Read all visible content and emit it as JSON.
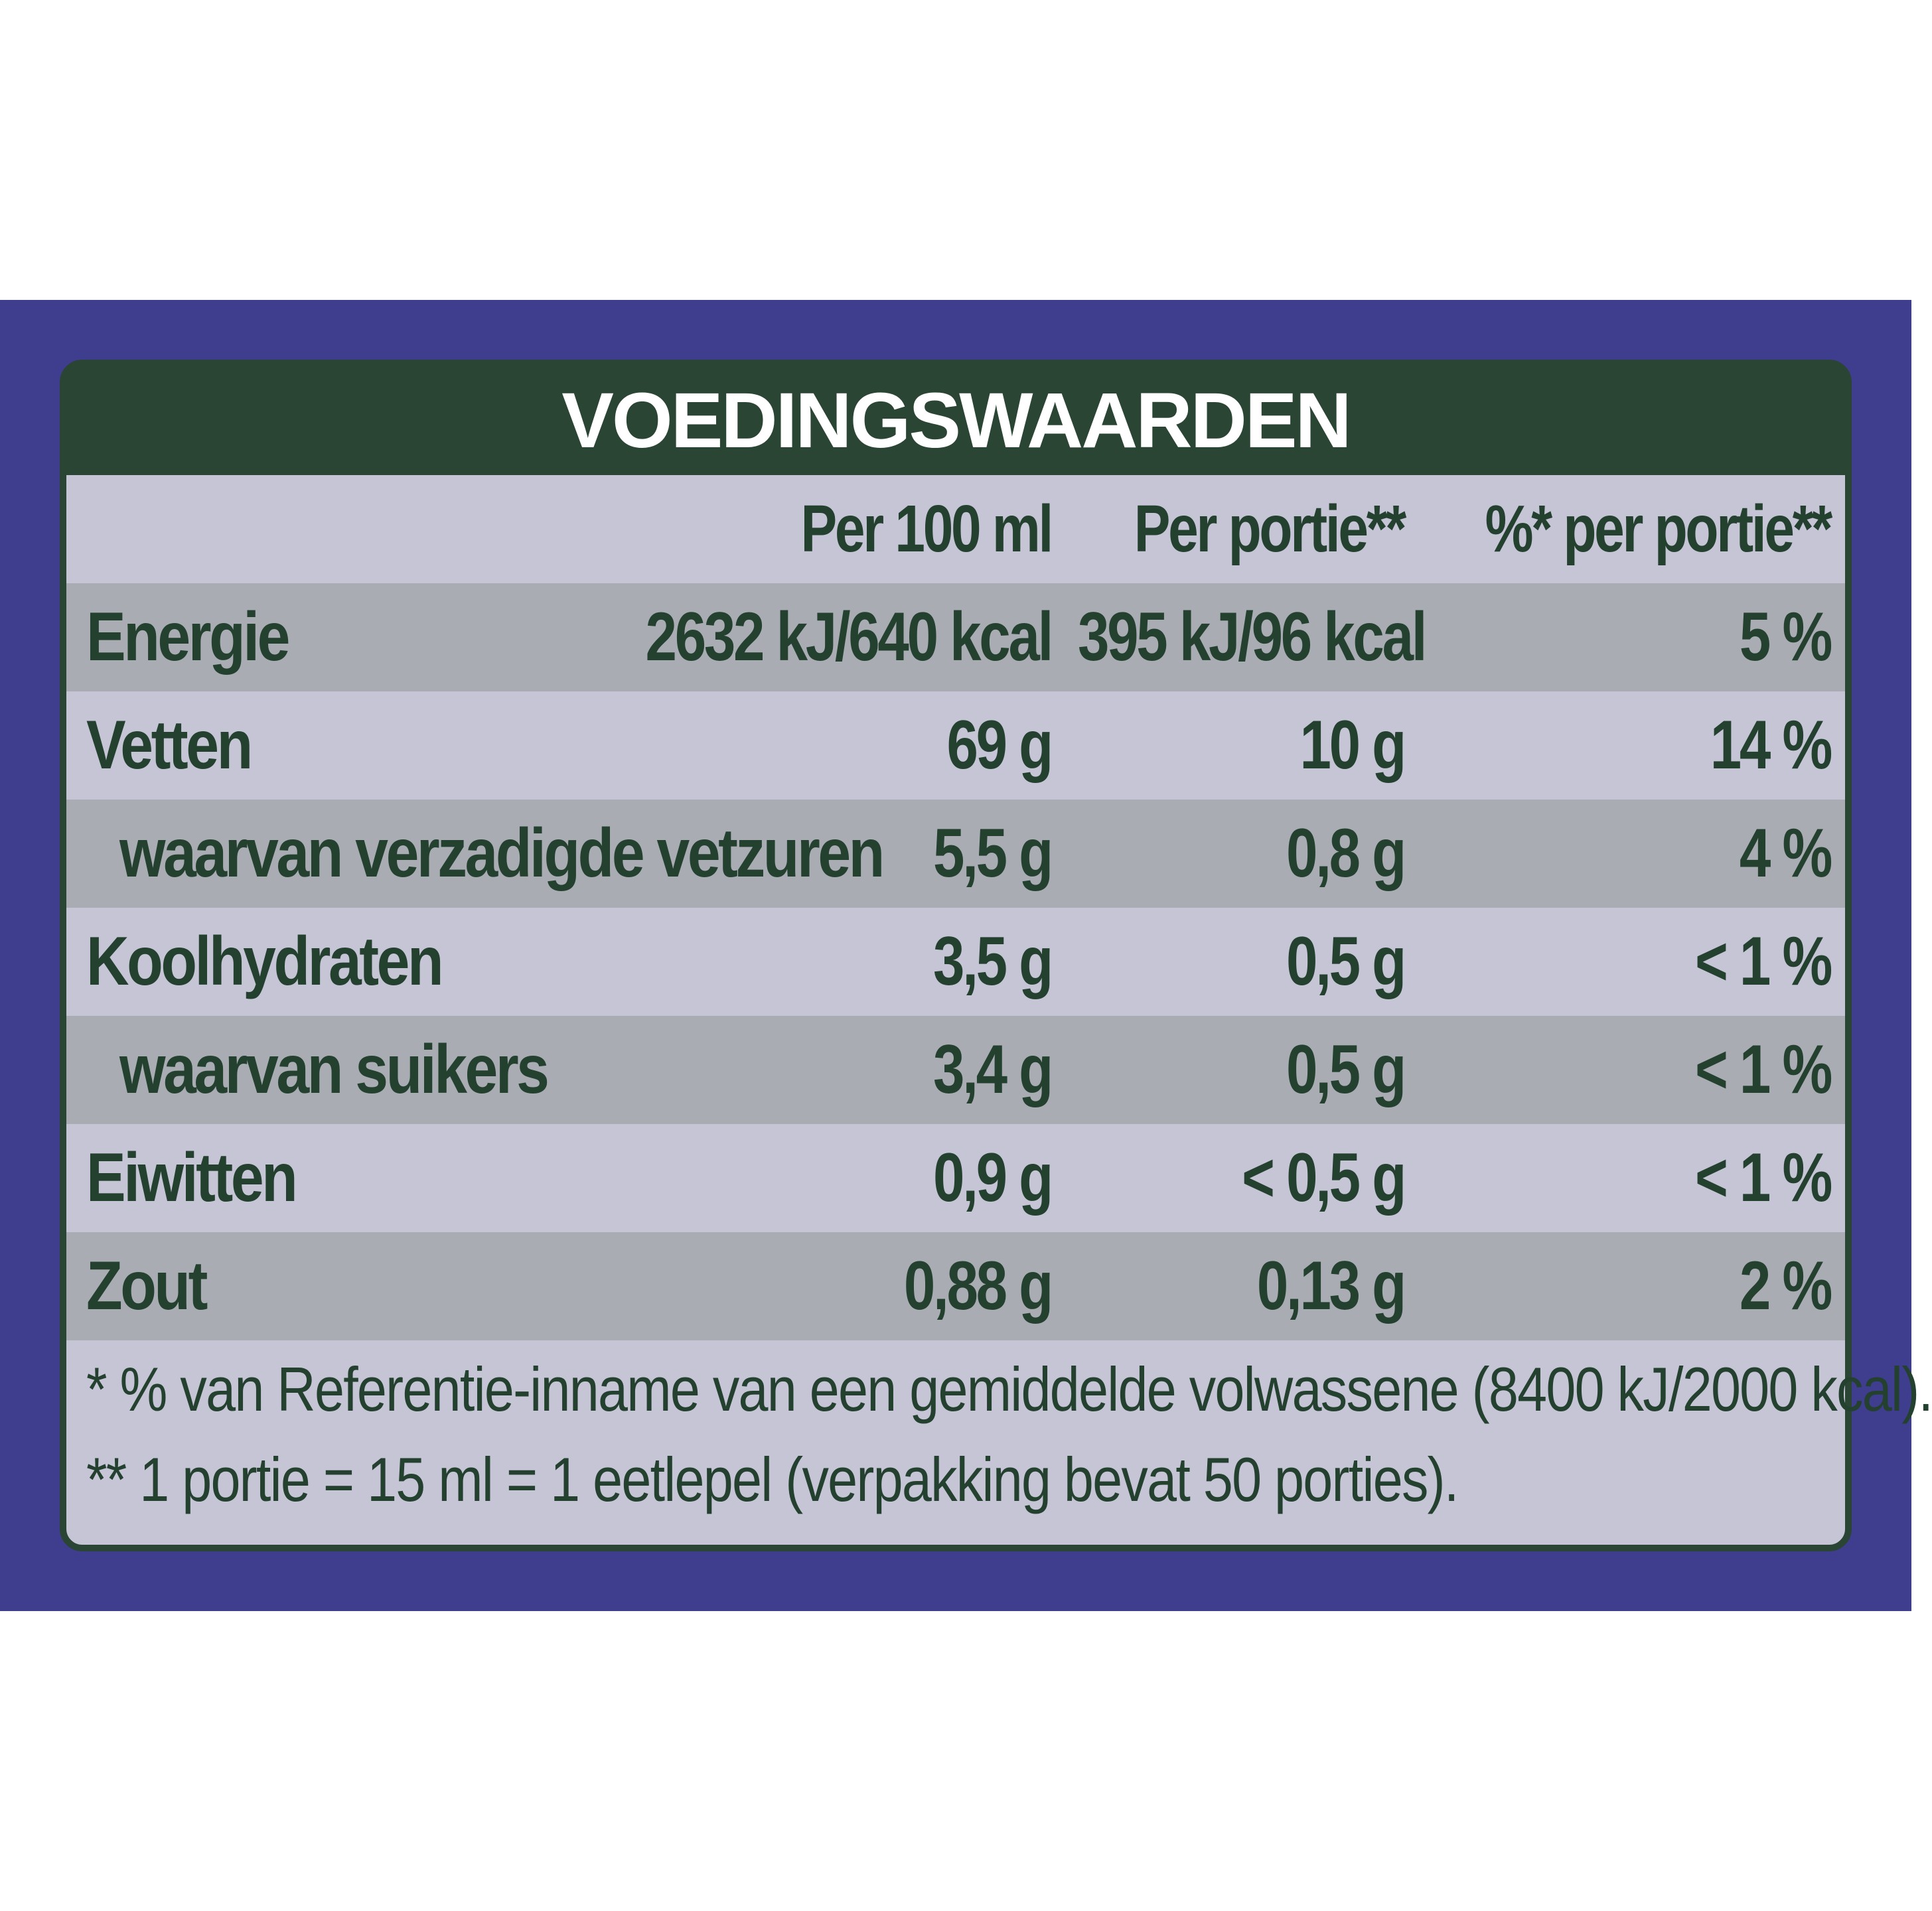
{
  "title": "VOEDINGSWAARDEN",
  "headers": [
    "Per 100 ml",
    "Per portie**",
    "%* per portie**"
  ],
  "rows": [
    {
      "label": "Energie",
      "per100": "2632 kJ/640 kcal",
      "portie": "395 kJ/96 kcal",
      "pct": "5 %"
    },
    {
      "label": "Vetten",
      "per100": "69 g",
      "portie": "10 g",
      "pct": "14 %"
    },
    {
      "label": "waarvan verzadigde vetzuren",
      "per100": "5,5 g",
      "portie": "0,8 g",
      "pct": "4 %"
    },
    {
      "label": "Koolhydraten",
      "per100": "3,5 g",
      "portie": "0,5 g",
      "pct": "< 1 %"
    },
    {
      "label": "waarvan suikers",
      "per100": "3,4 g",
      "portie": "0,5 g",
      "pct": "< 1 %"
    },
    {
      "label": "Eiwitten",
      "per100": "0,9 g",
      "portie": "< 0,5 g",
      "pct": "< 1 %"
    },
    {
      "label": "Zout",
      "per100": "0,88 g",
      "portie": "0,13 g",
      "pct": "2 %"
    }
  ],
  "footnotes": [
    "* % van Referentie-inname van een gemiddelde volwassene (8400 kJ/2000 kcal).",
    "** 1 portie = 15 ml = 1 eetlepel (verpakking bevat 50 porties)."
  ],
  "colors": {
    "band": "#3f3d8e",
    "title_bg": "#2a4534",
    "row_light": "#c5c5d6",
    "row_dark": "#aaacb4",
    "text": "#24402f"
  }
}
